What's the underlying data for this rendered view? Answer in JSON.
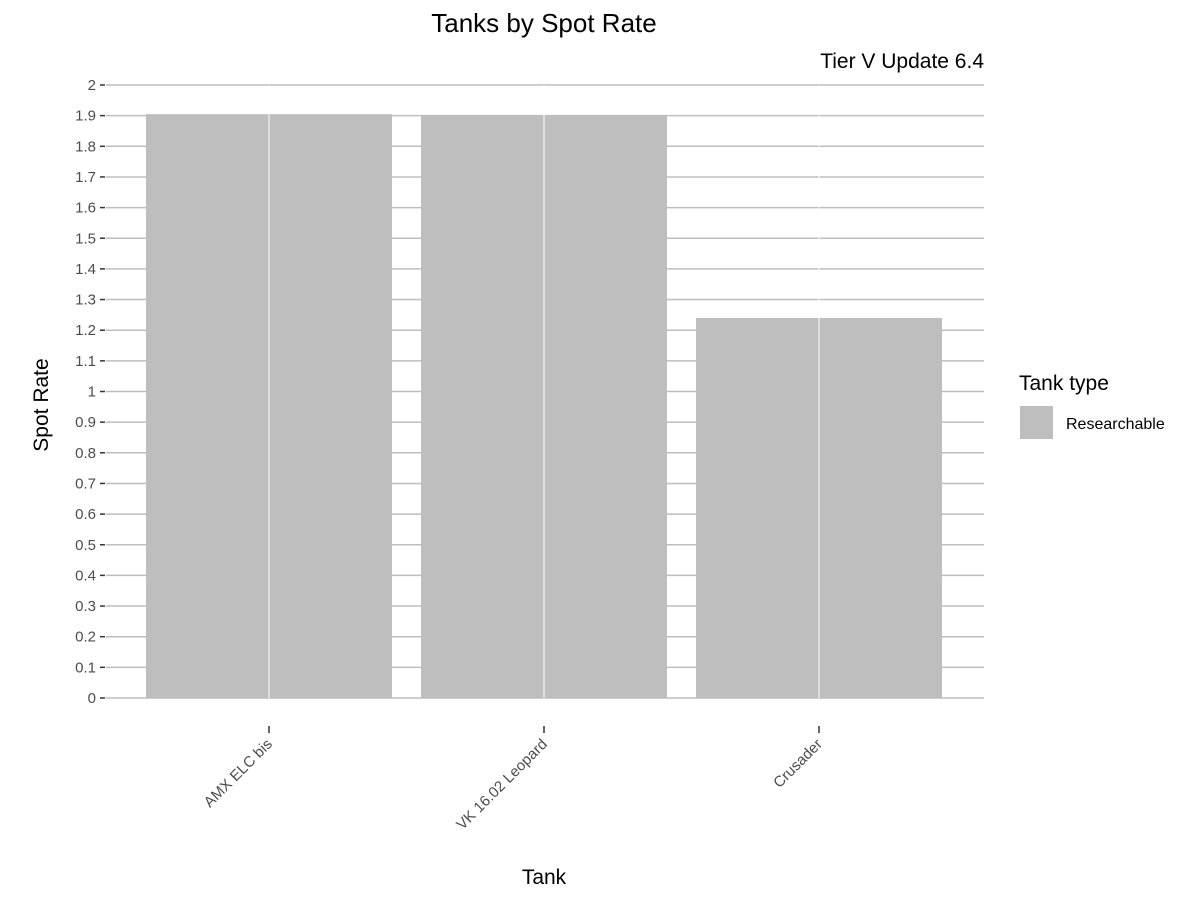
{
  "chart_data": {
    "type": "bar",
    "title": "Tanks by Spot Rate",
    "subtitle": "Tier V Update 6.4",
    "xlabel": "Tank",
    "ylabel": "Spot Rate",
    "categories": [
      "AMX ELC bis",
      "VK 16.02 Leopard",
      "Crusader"
    ],
    "values": [
      1.905,
      1.9,
      1.24
    ],
    "ylim": [
      0,
      2
    ],
    "yticks": [
      "0",
      "0.1",
      "0.2",
      "0.3",
      "0.4",
      "0.5",
      "0.6",
      "0.7",
      "0.8",
      "0.9",
      "1",
      "1.1",
      "1.2",
      "1.3",
      "1.4",
      "1.5",
      "1.6",
      "1.7",
      "1.8",
      "1.9",
      "2"
    ],
    "grid": true,
    "legend": {
      "title": "Tank type",
      "placement": "right",
      "entries": [
        {
          "label": "Researchable",
          "color": "#bebebe"
        }
      ]
    },
    "colors": {
      "bar": "#bebebe",
      "grid": "#bebebe",
      "tick": "#333333"
    }
  }
}
